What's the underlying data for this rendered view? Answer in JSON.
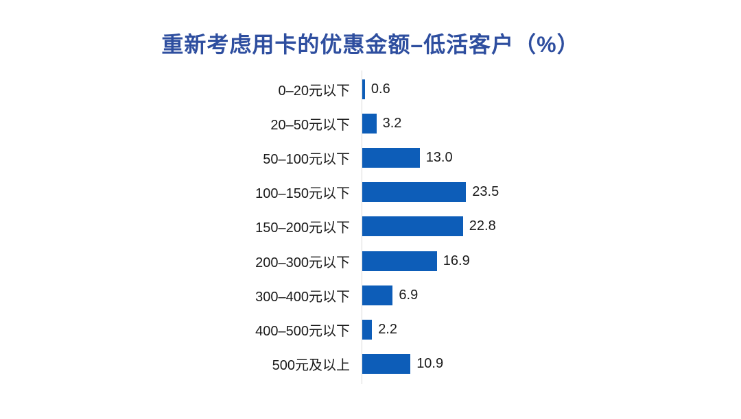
{
  "chart_data": {
    "type": "bar",
    "orientation": "horizontal",
    "title": "重新考虑用卡的优惠金额–低活客户（%）",
    "categories": [
      "0–20元以下",
      "20–50元以下",
      "50–100元以下",
      "100–150元以下",
      "150–200元以下",
      "200–300元以下",
      "300–400元以下",
      "400–500元以下",
      "500元及以上"
    ],
    "values": [
      0.6,
      3.2,
      13.0,
      23.5,
      22.8,
      16.9,
      6.9,
      2.2,
      10.9
    ],
    "value_labels": [
      "0.6",
      "3.2",
      "13.0",
      "23.5",
      "22.8",
      "16.9",
      "6.9",
      "2.2",
      "10.9"
    ],
    "xlabel": "",
    "ylabel": "",
    "xlim": [
      0,
      25
    ],
    "grid": false,
    "legend": false,
    "colors": {
      "bar": "#0D5DB8",
      "title": "#2E4E9F",
      "axis_line": "#D9D9D9",
      "labels": "#1A1A1A",
      "background": "#FFFFFF"
    }
  }
}
